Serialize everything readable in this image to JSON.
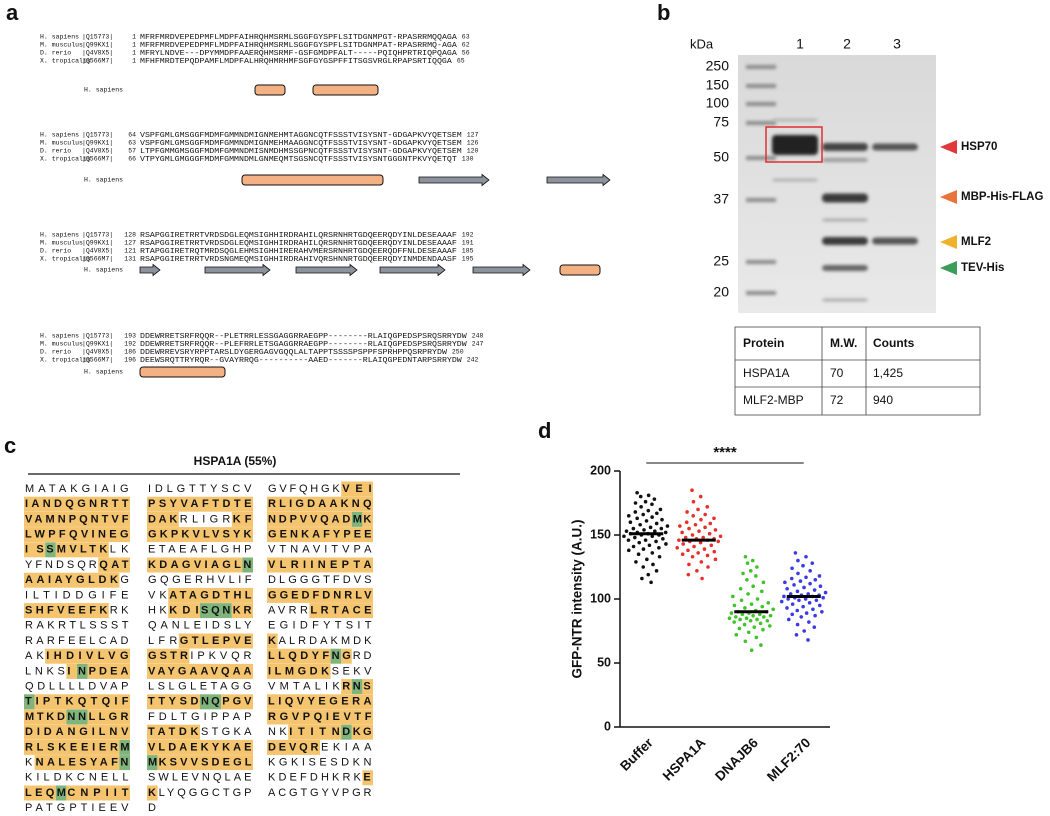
{
  "panel_labels": [
    "a",
    "b",
    "c",
    "d"
  ],
  "alignment": {
    "blocks": [
      {
        "rows": [
          {
            "species": "H. sapiens",
            "accession": "|Q15773|",
            "start": 1,
            "sequence": "MFRFMRDVEPEDPMFLMDPFAIHRQHMSRMLSGGFGYSPFLSITDGNMPGT-RPASRRMQQAGA",
            "end": 63
          },
          {
            "species": "M. musculus",
            "accession": "|Q99KX1|",
            "start": 1,
            "sequence": "MFRFMRDVEPEDPMFLMDPFAIHRQHMSRMLSGGFGYSPFLSITDGNMPAT-RPASRRMQ-AGA",
            "end": 62
          },
          {
            "species": "D. rerio",
            "accession": "|Q4V8X5|",
            "start": 1,
            "sequence": "MFRYLNDVE---DPYMMDPFAAERQHMSRMF-GSFGMDPFALT-----PQIQHPRTRIQPQAGA",
            "end": 56
          },
          {
            "species": "X. tropicalis",
            "accession": "|Q566M7|",
            "start": 1,
            "sequence": "MFHFMRDTEPQDPAMFLMDPFALHRQHMRHMFSGFGYGSPFFITSGSVRGLRPAPSRTIQQGA",
            "end": 65
          }
        ],
        "structure_label": "H. sapiens"
      },
      {
        "rows": [
          {
            "species": "H. sapiens",
            "accession": "|Q15773|",
            "start": 64,
            "sequence": "VSPFGMLGMSGGFMDMFGMMNDMIGNMEHMTAGGNCQTFSSSTVISYSNT-GDGAPKVYQETSEM",
            "end": 127
          },
          {
            "species": "M. musculus",
            "accession": "|Q99KX1|",
            "start": 63,
            "sequence": "VSPFGMLGMSGGFMDMFGMMNDMIGNMEHMAAGGNCQTFSSSTVISYSNT-GDGAPKVYQETSEM",
            "end": 126
          },
          {
            "species": "D. rerio",
            "accession": "|Q4V8X5|",
            "start": 57,
            "sequence": "LTPFGMMGMSGGFMDMFGMMNDMISNMDHMSSGPNCQTFSSSTVISYSNT-GDGAPKVYQETSEM",
            "end": 120
          },
          {
            "species": "X. tropicalis",
            "accession": "|Q566M7|",
            "start": 66,
            "sequence": "VTPYGMLGMGGGFMDMFGMMNDMLGNMEQMTSGSNCQTFSSSTVISYSNTGGGNTPKVYQETQT",
            "end": 130
          }
        ],
        "structure_label": "H. sapiens"
      },
      {
        "rows": [
          {
            "species": "H. sapiens",
            "accession": "|Q15773|",
            "start": 128,
            "sequence": "RSAPGGIRETRRTVRDSDGLEQMSIGHHIRDRAHILQRSRNHRTGDQEERQDYINLDESEAAAF",
            "end": 192
          },
          {
            "species": "M. musculus",
            "accession": "|Q99KX1|",
            "start": 127,
            "sequence": "RSAPGGIRETRRTVRDSDGLEQMSIGHHIRDRAHILQRSRNHRTGDQEERQDYINLDESEAAAF",
            "end": 191
          },
          {
            "species": "D. rerio",
            "accession": "|Q4V8X5|",
            "start": 121,
            "sequence": "RTAPGGIRETRQTMRDSQGLEHMSIGHHIRERAHVMERSRNHRTGDQEERQDFFNLDESEAAAF",
            "end": 185
          },
          {
            "species": "X. tropicalis",
            "accession": "|Q566M7|",
            "start": 131,
            "sequence": "RSAPGGIRETRRTVRDSNGMEQMSIGHHIRDRAHIVQRSHNNRTGDQEERQDYINMDENDAASF",
            "end": 195
          }
        ],
        "structure_label": "H. sapiens"
      },
      {
        "rows": [
          {
            "species": "H. sapiens",
            "accession": "|Q15773|",
            "start": 193,
            "sequence": "DDEWRRETSRFRQQR--PLETRRLESSGAGGRRAEGPP--------RLAIQGPEDSPSRQSRRYDW",
            "end": 248
          },
          {
            "species": "M. musculus",
            "accession": "|Q99KX1|",
            "start": 192,
            "sequence": "DDEWRRETSRFRQQR--PLEFRRLETSGAGGRRAEGPP--------RLAIQGPEDSPSRQSRRYDW",
            "end": 247
          },
          {
            "species": "D. rerio",
            "accession": "|Q4V8X5|",
            "start": 186,
            "sequence": "DDEWRREVSRYRPPTARSLDYGERGAGVGQQLALTAPPTSSSSPSPPFSPRHPPQSRPRYDW",
            "end": 250
          },
          {
            "species": "X. tropicalis",
            "accession": "|Q566M7|",
            "start": 196,
            "sequence": "DEEWSRQTTRYRQR--GVAYRRQG----------AAED-------RLAIQGPEDNTARPSRRYDW",
            "end": 242
          }
        ],
        "structure_label": "H. sapiens"
      }
    ]
  },
  "gel": {
    "unit": "kDa",
    "lanes": [
      "1",
      "2",
      "3"
    ],
    "markers": [
      250,
      150,
      100,
      75,
      50,
      37,
      25,
      20
    ],
    "bands": [
      {
        "label": "HSP70",
        "color": "#e0393b"
      },
      {
        "label": "MBP-His-FLAG",
        "color": "#e8743b"
      },
      {
        "label": "MLF2",
        "color": "#f0b22a"
      },
      {
        "label": "TEV-His",
        "color": "#3a9e5a"
      }
    ]
  },
  "table": {
    "header": [
      "Protein",
      "M.W.",
      "Counts"
    ],
    "rows": [
      [
        "HSPA1A",
        "70",
        "1,425"
      ],
      [
        "MLF2-MBP",
        "72",
        "940"
      ]
    ]
  },
  "coverage": {
    "title": "HSPA1A (55%)",
    "rows": [
      [
        [
          "MATAKGIAIG"
        ],
        [
          "IDLGTTYSCV"
        ],
        [
          "GVFQHGK",
          {
            "covered": "VEI"
          }
        ]
      ],
      [
        [
          {
            "covered": "IANDQGNRTT"
          }
        ],
        [
          {
            "covered": "PSYVAFTDTE"
          }
        ],
        [
          {
            "covered": "RLIGDAAKNQ"
          }
        ]
      ],
      [
        [
          {
            "covered": "VAMNPQNTVF"
          }
        ],
        [
          {
            "covered": "DAK"
          },
          "RLIGR",
          {
            "covered": "KF"
          }
        ],
        [
          {
            "covered": "NDPVVQAD"
          },
          {
            "modified": "M"
          },
          {
            "covered": "K"
          }
        ]
      ],
      [
        [
          {
            "covered": "LWPFQVINEG"
          }
        ],
        [
          {
            "covered": "GKPKVLVSYK"
          }
        ],
        [
          {
            "covered": "GENKAFYPEE"
          }
        ]
      ],
      [
        [
          {
            "covered": "IS"
          },
          {
            "modified": "S"
          },
          {
            "covered": "MVLTK"
          },
          "LK"
        ],
        [
          "ETAEAFLGHP"
        ],
        [
          "VTNAVITVPA"
        ]
      ],
      [
        [
          "YFNDSQR",
          {
            "covered": "QAT"
          }
        ],
        [
          {
            "covered": "KDAGVIAGL"
          },
          {
            "modified": "N"
          }
        ],
        [
          {
            "covered": "VLRIINEPTA"
          }
        ]
      ],
      [
        [
          {
            "covered": "AAIAYGLDK"
          },
          "G"
        ],
        [
          "GQGERHVLIF"
        ],
        [
          "DLGGGTFDVS"
        ]
      ],
      [
        [
          "ILTIDDGIFE"
        ],
        [
          "VK",
          {
            "covered": "ATAGDTHL"
          }
        ],
        [
          {
            "covered": "GGEDFDNRLV"
          }
        ]
      ],
      [
        [
          {
            "covered": "SHFVEEFK"
          },
          "RK"
        ],
        [
          "HK",
          {
            "covered": "KDI"
          },
          {
            "modified": "SQN"
          },
          {
            "covered": "KR"
          }
        ],
        [
          "AVRR",
          {
            "covered": "LRTACE"
          }
        ]
      ],
      [
        [
          "RAKRTLSSST"
        ],
        [
          "QANLEIDSLY"
        ],
        [
          "EGIDFYTSIT"
        ]
      ],
      [
        [
          "RARFEELCAD"
        ],
        [
          "LFR",
          {
            "covered": "GTLEPVE"
          }
        ],
        [
          {
            "covered": "K"
          },
          "ALRDAKMDK"
        ]
      ],
      [
        [
          "AK",
          {
            "covered": "IHDIVLVG"
          }
        ],
        [
          {
            "covered": "GSTR"
          },
          "IPKVQR"
        ],
        [
          {
            "covered": "LLQDYF"
          },
          {
            "modified": "N"
          },
          {
            "covered": "G"
          },
          "RD"
        ]
      ],
      [
        [
          "LNKS",
          {
            "covered": "I"
          },
          {
            "modified": "N"
          },
          {
            "covered": "PDEA"
          }
        ],
        [
          {
            "covered": "VAYGAAVQAA"
          }
        ],
        [
          {
            "covered": "ILMGDK"
          },
          "SEKV"
        ]
      ],
      [
        [
          "QDLLLLDVAP"
        ],
        [
          "LSLGLETAGG"
        ],
        [
          "VMTALIK",
          {
            "covered": "R"
          },
          {
            "modified": "N"
          },
          {
            "covered": "S"
          }
        ]
      ],
      [
        [
          {
            "modified": "T"
          },
          {
            "covered": "IPTKQTQIF"
          }
        ],
        [
          {
            "covered": "TTYSD"
          },
          {
            "modified": "NQ"
          },
          {
            "covered": "PGV"
          }
        ],
        [
          {
            "covered": "LIQVYEGERA"
          }
        ]
      ],
      [
        [
          {
            "covered": "MTKD"
          },
          {
            "modified": "NN"
          },
          {
            "covered": "LLGR"
          }
        ],
        [
          "FDLTGIPPAP"
        ],
        [
          {
            "covered": "RGVPQIEVTF"
          }
        ]
      ],
      [
        [
          {
            "covered": "DIDANGILNV"
          }
        ],
        [
          {
            "covered": "TATDK"
          },
          "STGKA"
        ],
        [
          "NK",
          {
            "covered": "ITITN"
          },
          {
            "modified": "D"
          },
          {
            "covered": "KG"
          }
        ]
      ],
      [
        [
          {
            "covered": "RLSKEEIER"
          },
          {
            "modified": "M"
          }
        ],
        [
          {
            "covered": "VLDAEKYKAE"
          }
        ],
        [
          {
            "covered": "DEVQR"
          },
          "EKIAA"
        ]
      ],
      [
        [
          "K",
          {
            "covered": "NALESYAF"
          },
          {
            "modified": "N"
          }
        ],
        [
          {
            "modified": "M"
          },
          {
            "covered": "KSVVSDEGL"
          }
        ],
        [
          "KGKISESDKN"
        ]
      ],
      [
        [
          "KILDKCNELL"
        ],
        [
          "SWLEVNQLAE"
        ],
        [
          "KDEFDHKRK",
          {
            "covered": "E"
          }
        ]
      ],
      [
        [
          {
            "covered": "LEQ"
          },
          {
            "modified": "M"
          },
          {
            "covered": "CNPIIT"
          }
        ],
        [
          {
            "covered": "K"
          },
          "LYQGGCTGP"
        ],
        [
          "ACGTGYVPGR"
        ]
      ],
      [
        [
          "PATGPTIEEV"
        ],
        [
          "D"
        ]
      ]
    ]
  },
  "chart_data": {
    "type": "dot",
    "ylabel": "GFP-NTR intensity (A.U.)",
    "annotation": "****",
    "categories": [
      "Buffer",
      "HSPA1A",
      "DNAJB6",
      "MLF2:70"
    ],
    "colors": [
      "#111111",
      "#e8302a",
      "#3fc22a",
      "#3a3ae8"
    ],
    "means": [
      151,
      146,
      90,
      102
    ],
    "values": [
      [
        183,
        181,
        180,
        178,
        176,
        175,
        174,
        172,
        170,
        169,
        168,
        167,
        166,
        165,
        164,
        163,
        162,
        161,
        160,
        159,
        158,
        157,
        156,
        155,
        155,
        154,
        153,
        153,
        152,
        152,
        151,
        151,
        150,
        150,
        149,
        149,
        148,
        147,
        146,
        146,
        145,
        144,
        143,
        142,
        141,
        140,
        139,
        138,
        136,
        135,
        133,
        131,
        129,
        127,
        125,
        122,
        119,
        116,
        113
      ],
      [
        185,
        180,
        176,
        172,
        170,
        168,
        166,
        165,
        163,
        162,
        160,
        159,
        158,
        157,
        156,
        155,
        154,
        153,
        152,
        151,
        150,
        149,
        148,
        148,
        147,
        147,
        146,
        146,
        145,
        145,
        144,
        143,
        142,
        141,
        140,
        139,
        138,
        137,
        136,
        135,
        134,
        133,
        131,
        129,
        127,
        125,
        122,
        119,
        116
      ],
      [
        133,
        130,
        128,
        125,
        122,
        120,
        118,
        115,
        113,
        110,
        108,
        106,
        104,
        102,
        100,
        99,
        97,
        96,
        95,
        94,
        93,
        92,
        91,
        90,
        90,
        89,
        89,
        88,
        88,
        87,
        87,
        86,
        86,
        85,
        85,
        84,
        84,
        83,
        83,
        82,
        81,
        80,
        79,
        78,
        77,
        76,
        74,
        72,
        70,
        67,
        64,
        60
      ],
      [
        136,
        133,
        130,
        128,
        126,
        124,
        122,
        120,
        118,
        117,
        116,
        115,
        114,
        113,
        112,
        111,
        110,
        109,
        108,
        107,
        106,
        105,
        104,
        104,
        103,
        103,
        102,
        102,
        101,
        101,
        100,
        100,
        99,
        99,
        98,
        97,
        96,
        95,
        94,
        93,
        92,
        91,
        90,
        89,
        88,
        87,
        86,
        84,
        82,
        80,
        78,
        75,
        72,
        68
      ]
    ],
    "ylim": [
      0,
      200
    ],
    "yticks": [
      0,
      50,
      100,
      150,
      200
    ]
  }
}
